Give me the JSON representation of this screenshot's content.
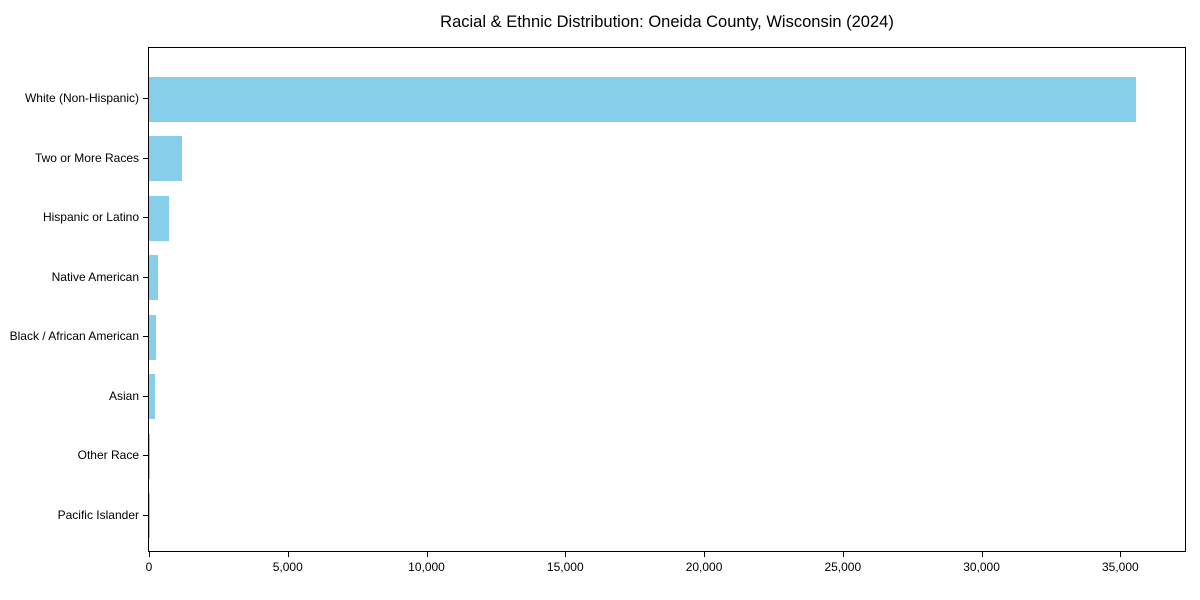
{
  "chart_data": {
    "type": "bar",
    "orientation": "horizontal",
    "title": "Racial & Ethnic Distribution: Oneida County, Wisconsin (2024)",
    "categories": [
      "White (Non-Hispanic)",
      "Two or More Races",
      "Hispanic or Latino",
      "Native American",
      "Black / African American",
      "Asian",
      "Other Race",
      "Pacific Islander"
    ],
    "values": [
      35550,
      1180,
      710,
      310,
      260,
      220,
      40,
      10
    ],
    "xlabel": "",
    "ylabel": "",
    "xlim": [
      0,
      37330
    ],
    "x_ticks": [
      0,
      5000,
      10000,
      15000,
      20000,
      25000,
      30000,
      35000
    ],
    "x_tick_labels": [
      "0",
      "5,000",
      "10,000",
      "15,000",
      "20,000",
      "25,000",
      "30,000",
      "35,000"
    ],
    "bar_color": "#87CEEB",
    "grid": false,
    "legend_position": "none",
    "frame": "full-box"
  }
}
